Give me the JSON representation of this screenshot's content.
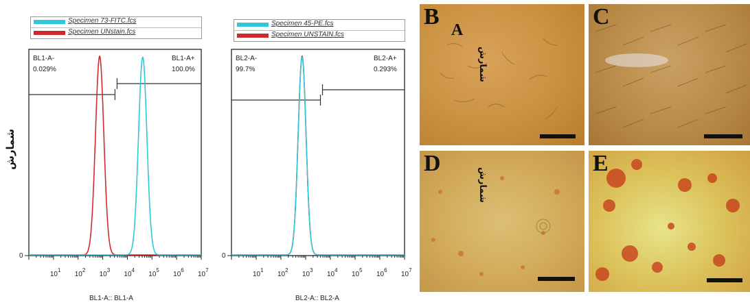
{
  "figure": {
    "y_axis_label": "شمارش",
    "chart_data": [
      {
        "type": "line",
        "panel": "flow-histogram-left",
        "legend": [
          "Specimen 73-FITC.fcs",
          "Specimen UNstain.fcs"
        ],
        "xlabel": "BL1-A:: BL1-A",
        "x_scale": "log",
        "xlim": [
          1,
          10000000
        ],
        "x_ticks": [
          "10^1",
          "10^2",
          "10^3",
          "10^4",
          "10^5",
          "10^6",
          "10^7"
        ],
        "y_tick": "0",
        "gates": [
          {
            "name": "BL1-A-",
            "value": "0.029%"
          },
          {
            "name": "BL1-A+",
            "value": "100.0%"
          }
        ],
        "series": [
          {
            "name": "Specimen UNstain.fcs",
            "color": "#cc2b2b",
            "peak_x": 750,
            "rel_height": 1.0,
            "log_sd": 0.17
          },
          {
            "name": "Specimen 73-FITC.fcs",
            "color": "#2ec8d8",
            "peak_x": 42000,
            "rel_height": 0.995,
            "log_sd": 0.17
          }
        ]
      },
      {
        "type": "line",
        "panel": "flow-histogram-right",
        "legend": [
          "Specimen 45-PE.fcs",
          "Specimen UNSTAIN.fcs"
        ],
        "xlabel": "BL2-A:: BL2-A",
        "x_scale": "log",
        "xlim": [
          1,
          10000000
        ],
        "x_ticks": [
          "10^1",
          "10^2",
          "10^3",
          "10^4",
          "10^5",
          "10^6",
          "10^7"
        ],
        "y_tick": "0",
        "gates": [
          {
            "name": "BL2-A-",
            "value": "99.7%"
          },
          {
            "name": "BL2-A+",
            "value": "0.293%"
          }
        ],
        "series": [
          {
            "name": "Specimen UNSTAIN.fcs",
            "color": "#cc2b2b",
            "peak_x": 720,
            "rel_height": 1.0,
            "log_sd": 0.16
          },
          {
            "name": "Specimen 45-PE.fcs",
            "color": "#2ec8d8",
            "peak_x": 720,
            "rel_height": 0.995,
            "log_sd": 0.16
          }
        ]
      }
    ],
    "micrographs": [
      {
        "letter": "B",
        "sub_letter": "A",
        "overlay_text": "شمارش"
      },
      {
        "letter": "C"
      },
      {
        "letter": "D",
        "overlay_text": "شمارش"
      },
      {
        "letter": "E"
      }
    ]
  }
}
